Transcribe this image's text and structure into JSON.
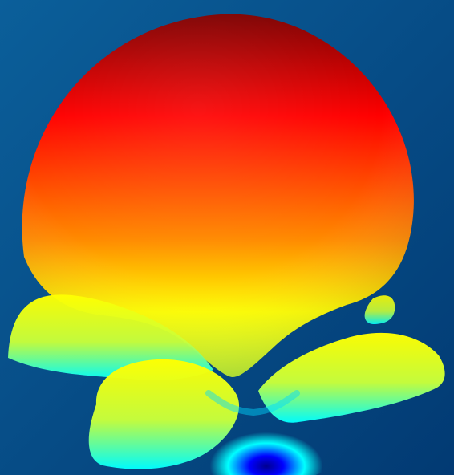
{
  "background": {
    "top_left_color": "#0b5f9a",
    "bottom_right_color": "#023a73"
  },
  "colormap": {
    "dark_red": "#7d0000",
    "red": "#ff0000",
    "orange": "#ff8a00",
    "yellow": "#ffff00",
    "yellow_green": "#c8ff3b",
    "cyan": "#00ffff",
    "blue": "#0000ff",
    "dark_blue": "#00008f"
  }
}
